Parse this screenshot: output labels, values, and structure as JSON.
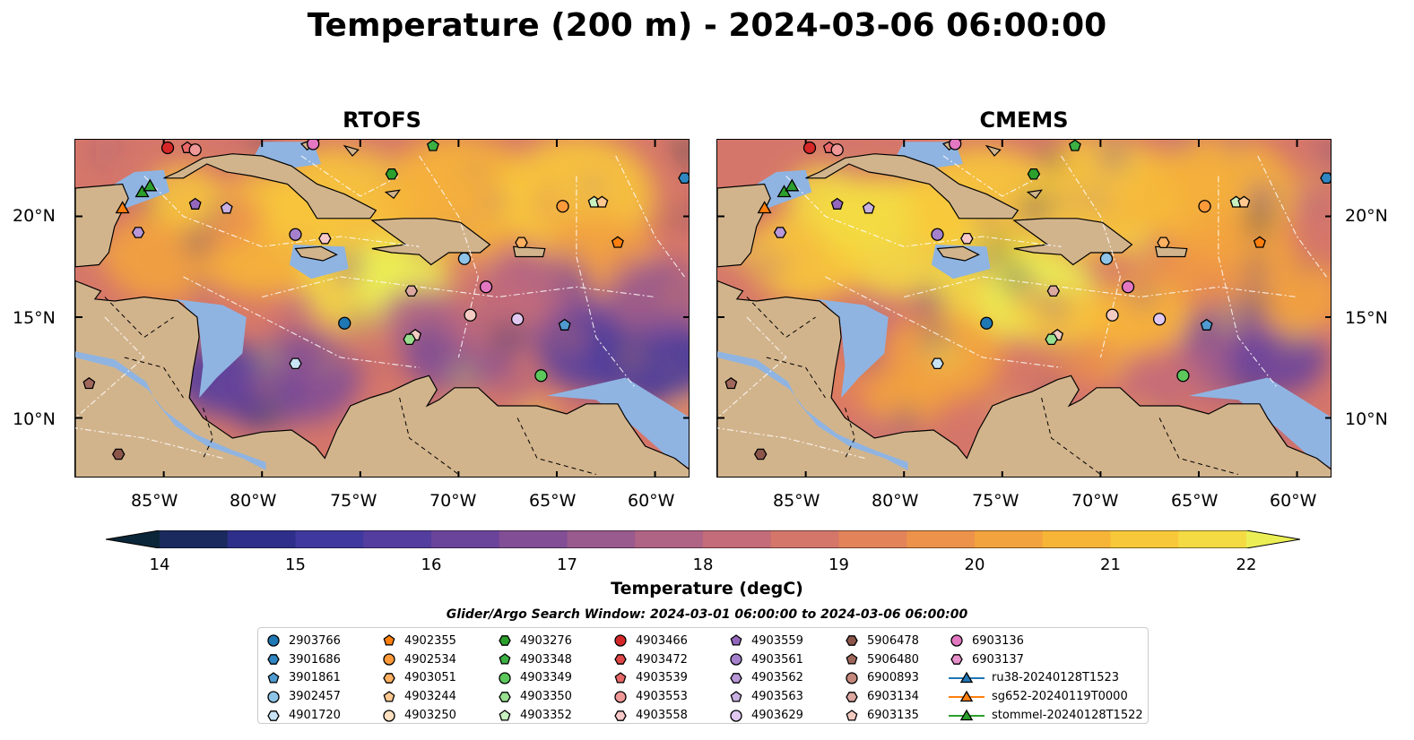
{
  "title": "Temperature (200 m) - 2024-03-06 06:00:00",
  "panels": [
    {
      "title": "RTOFS"
    },
    {
      "title": "CMEMS"
    }
  ],
  "axes": {
    "lon_ticks": [
      "85°W",
      "80°W",
      "75°W",
      "70°W",
      "65°W",
      "60°W"
    ],
    "lat_ticks": [
      "20°N",
      "15°N",
      "10°N"
    ]
  },
  "colorbar": {
    "label": "Temperature (degC)",
    "ticks": [
      "14",
      "15",
      "16",
      "17",
      "18",
      "19",
      "20",
      "21",
      "22"
    ],
    "range": [
      14,
      22
    ],
    "extend": "both",
    "colors": [
      "#0b2638",
      "#1b2a5e",
      "#2e2f8a",
      "#3f389e",
      "#533d9e",
      "#6a449b",
      "#824e95",
      "#995a8e",
      "#b06485",
      "#c46c79",
      "#d5766a",
      "#e2835a",
      "#ec924a",
      "#f3a33d",
      "#f7b538",
      "#f8c83b",
      "#f4da43",
      "#ebef55"
    ]
  },
  "colors": {
    "land": "#d2b48c",
    "shelf": "#8fb4e2",
    "deep_cold": "#0b2638",
    "boundary": "#ffffff"
  },
  "search_window": "Glider/Argo Search Window: 2024-03-01 06:00:00 to 2024-03-06 06:00:00",
  "legend": [
    [
      {
        "label": "2903766",
        "marker": "circle",
        "color": "#1f77b4"
      },
      {
        "label": "3901686",
        "marker": "hexagon",
        "color": "#2f86c0"
      },
      {
        "label": "3901861",
        "marker": "pentagon",
        "color": "#4f9ad0"
      },
      {
        "label": "3902457",
        "marker": "circle",
        "color": "#8fc4e8"
      },
      {
        "label": "4901720",
        "marker": "hexagon",
        "color": "#c8e4f5"
      }
    ],
    [
      {
        "label": "4902355",
        "marker": "pentagon",
        "color": "#ff7f0e"
      },
      {
        "label": "4902534",
        "marker": "circle",
        "color": "#ff9a3a"
      },
      {
        "label": "4903051",
        "marker": "hexagon",
        "color": "#ffb060"
      },
      {
        "label": "4903244",
        "marker": "pentagon",
        "color": "#ffc890"
      },
      {
        "label": "4903250",
        "marker": "circle",
        "color": "#ffe0c0"
      }
    ],
    [
      {
        "label": "4903276",
        "marker": "hexagon",
        "color": "#2ca02c"
      },
      {
        "label": "4903348",
        "marker": "pentagon",
        "color": "#3cb043"
      },
      {
        "label": "4903349",
        "marker": "circle",
        "color": "#5cc85c"
      },
      {
        "label": "4903350",
        "marker": "hexagon",
        "color": "#98e08f"
      },
      {
        "label": "4903352",
        "marker": "pentagon",
        "color": "#c8f0c0"
      }
    ],
    [
      {
        "label": "4903466",
        "marker": "circle",
        "color": "#d62728"
      },
      {
        "label": "4903472",
        "marker": "hexagon",
        "color": "#e04848"
      },
      {
        "label": "4903539",
        "marker": "pentagon",
        "color": "#e86868"
      },
      {
        "label": "4903553",
        "marker": "circle",
        "color": "#f09898"
      },
      {
        "label": "4903558",
        "marker": "hexagon",
        "color": "#f8c8c8"
      }
    ],
    [
      {
        "label": "4903559",
        "marker": "pentagon",
        "color": "#9467bd"
      },
      {
        "label": "4903561",
        "marker": "circle",
        "color": "#a580cc"
      },
      {
        "label": "4903562",
        "marker": "hexagon",
        "color": "#b898d8"
      },
      {
        "label": "4903563",
        "marker": "pentagon",
        "color": "#c8b0e0"
      },
      {
        "label": "4903629",
        "marker": "circle",
        "color": "#e0c8f0"
      }
    ],
    [
      {
        "label": "5906478",
        "marker": "hexagon",
        "color": "#8c564b"
      },
      {
        "label": "5906480",
        "marker": "pentagon",
        "color": "#a0685c"
      },
      {
        "label": "6900893",
        "marker": "circle",
        "color": "#c4887c"
      },
      {
        "label": "6903134",
        "marker": "hexagon",
        "color": "#dca8a0"
      },
      {
        "label": "6903135",
        "marker": "pentagon",
        "color": "#f4cbc2"
      }
    ],
    [
      {
        "label": "6903136",
        "marker": "circle",
        "color": "#e377c2"
      },
      {
        "label": "6903137",
        "marker": "hexagon",
        "color": "#e890cc"
      },
      {
        "label": "ru38-20240128T1523",
        "marker": "triangle-line",
        "color": "#1f77b4"
      },
      {
        "label": "sg652-20240119T0000",
        "marker": "triangle-line",
        "color": "#ff7f0e"
      },
      {
        "label": "stommel-20240128T1522",
        "marker": "triangle-line",
        "color": "#2ca02c"
      }
    ]
  ]
}
